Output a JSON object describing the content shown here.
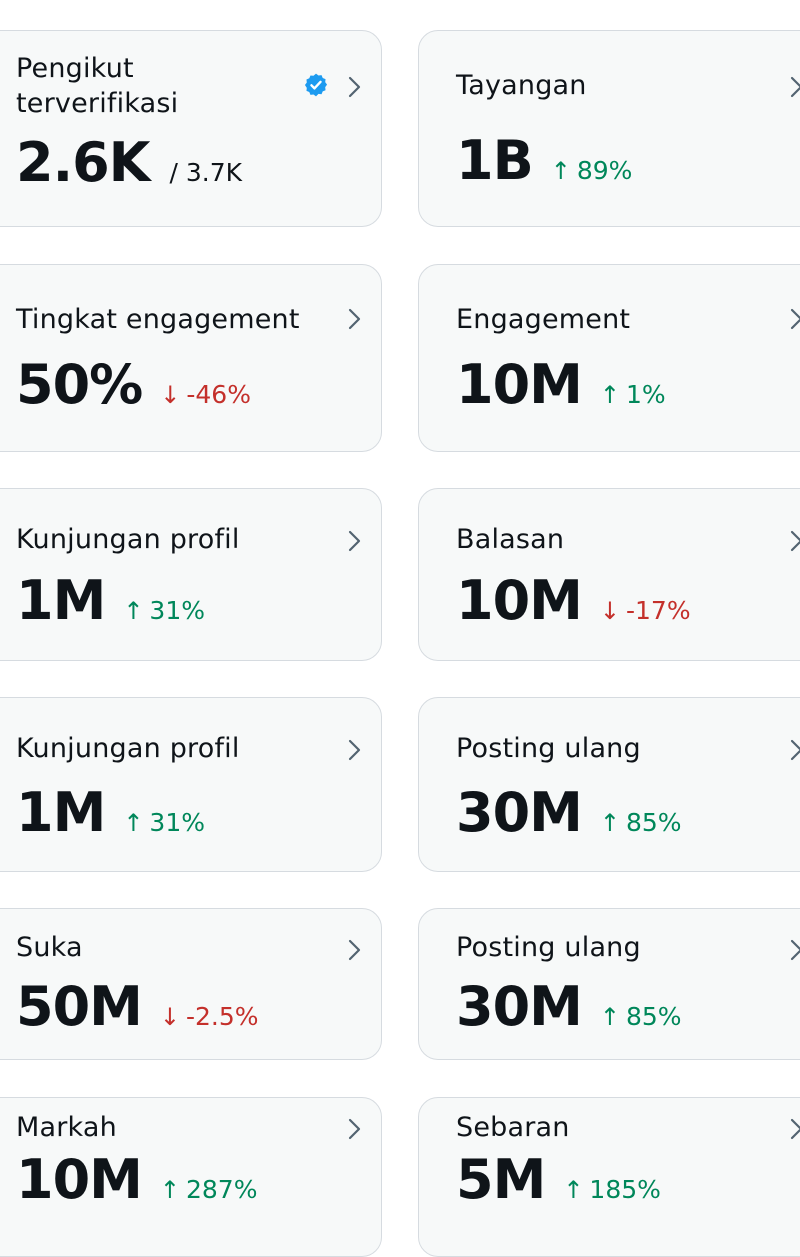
{
  "colors": {
    "card_bg": "#f7f9f9",
    "card_border": "#d6dbe0",
    "text": "#0f1419",
    "up": "#00875a",
    "down": "#c4302b",
    "verified": "#1d9bf0",
    "chevron": "#536471"
  },
  "cards": {
    "followers": {
      "title": "Pengikut terverifikasi",
      "value": "2.6K",
      "total": "/ 3.7K"
    },
    "views": {
      "title": "Tayangan",
      "value": "1B",
      "arrow": "↑",
      "delta": "89%"
    },
    "engagement_rate": {
      "title": "Tingkat engagement",
      "value": "50%",
      "arrow": "↓",
      "delta": "-46%"
    },
    "engagements": {
      "title": "Engagement",
      "value": "10M",
      "arrow": "↑",
      "delta": "1%"
    },
    "profile_visits_1": {
      "title": "Kunjungan profil",
      "value": "1M",
      "arrow": "↑",
      "delta": "31%"
    },
    "replies": {
      "title": "Balasan",
      "value": "10M",
      "arrow": "↓",
      "delta": "-17%"
    },
    "profile_visits_2": {
      "title": "Kunjungan profil",
      "value": "1M",
      "arrow": "↑",
      "delta": "31%"
    },
    "reposts_1": {
      "title": "Posting ulang",
      "value": "30M",
      "arrow": "↑",
      "delta": "85%"
    },
    "likes": {
      "title": "Suka",
      "value": "50M",
      "arrow": "↓",
      "delta": "-2.5%"
    },
    "reposts_2": {
      "title": "Posting ulang",
      "value": "30M",
      "arrow": "↑",
      "delta": "85%"
    },
    "bookmarks": {
      "title": "Markah",
      "value": "10M",
      "arrow": "↑",
      "delta": "287%"
    },
    "shares": {
      "title": "Sebaran",
      "value": "5M",
      "arrow": "↑",
      "delta": "185%"
    }
  }
}
